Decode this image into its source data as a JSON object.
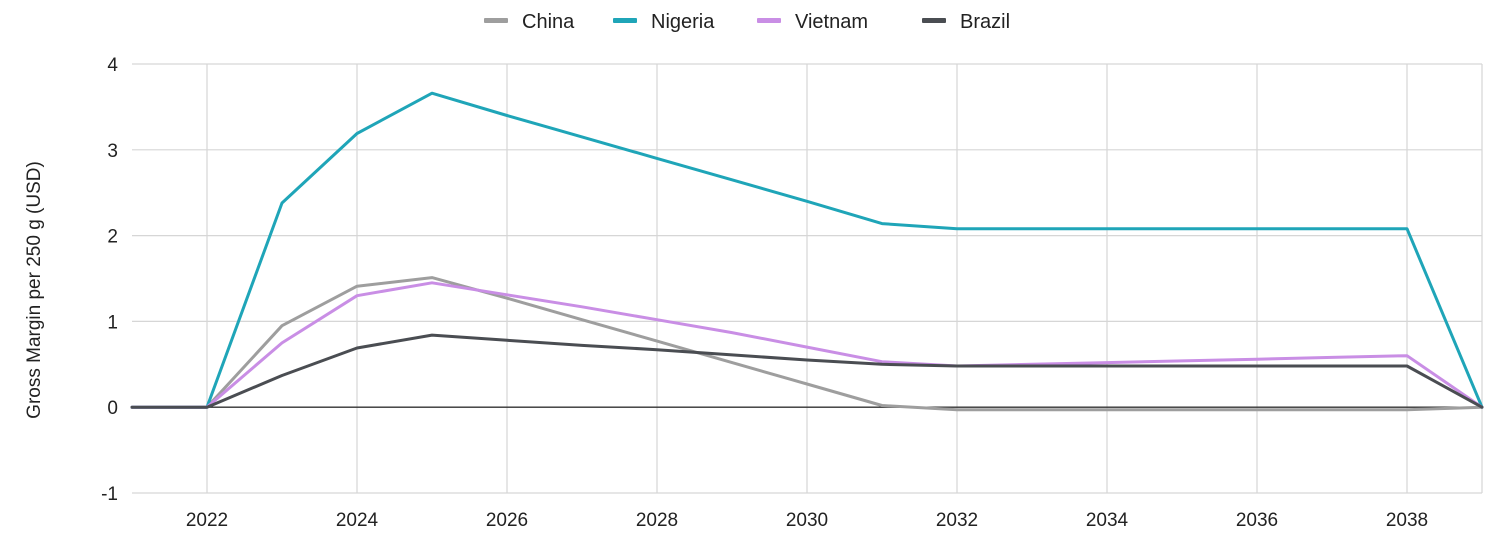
{
  "chart_data": {
    "type": "line",
    "title": "",
    "xlabel": "",
    "ylabel": "Gross Margin per 250 g (USD)",
    "x": [
      2021,
      2022,
      2023,
      2024,
      2025,
      2026,
      2027,
      2028,
      2029,
      2030,
      2031,
      2032,
      2033,
      2034,
      2035,
      2036,
      2037,
      2038,
      2039
    ],
    "xlim": [
      2021,
      2039
    ],
    "ylim": [
      -1,
      4
    ],
    "x_ticks": [
      "2022",
      "2024",
      "2026",
      "2028",
      "2030",
      "2032",
      "2034",
      "2036",
      "2038"
    ],
    "y_ticks": [
      "-1",
      "0",
      "1",
      "2",
      "3",
      "4"
    ],
    "grid": true,
    "legend_position": "top-center",
    "series": [
      {
        "name": "China",
        "color": "#9e9e9e",
        "values": [
          0,
          0,
          0.95,
          1.41,
          1.51,
          1.27,
          1.02,
          0.77,
          0.52,
          0.27,
          0.02,
          -0.03,
          -0.03,
          -0.03,
          -0.03,
          -0.03,
          -0.03,
          -0.03,
          0
        ]
      },
      {
        "name": "Nigeria",
        "color": "#1fa5b8",
        "values": [
          0,
          0,
          2.38,
          3.19,
          3.66,
          3.4,
          3.15,
          2.9,
          2.65,
          2.4,
          2.14,
          2.08,
          2.08,
          2.08,
          2.08,
          2.08,
          2.08,
          2.08,
          0
        ]
      },
      {
        "name": "Vietnam",
        "color": "#c98ee5",
        "values": [
          0,
          0,
          0.75,
          1.3,
          1.45,
          1.31,
          1.17,
          1.02,
          0.87,
          0.7,
          0.53,
          0.48,
          0.5,
          0.52,
          0.54,
          0.56,
          0.58,
          0.6,
          0
        ]
      },
      {
        "name": "Brazil",
        "color": "#4a4d52",
        "values": [
          0,
          0,
          0.37,
          0.69,
          0.84,
          0.78,
          0.72,
          0.67,
          0.61,
          0.55,
          0.5,
          0.48,
          0.48,
          0.48,
          0.48,
          0.48,
          0.48,
          0.48,
          0
        ]
      }
    ]
  }
}
